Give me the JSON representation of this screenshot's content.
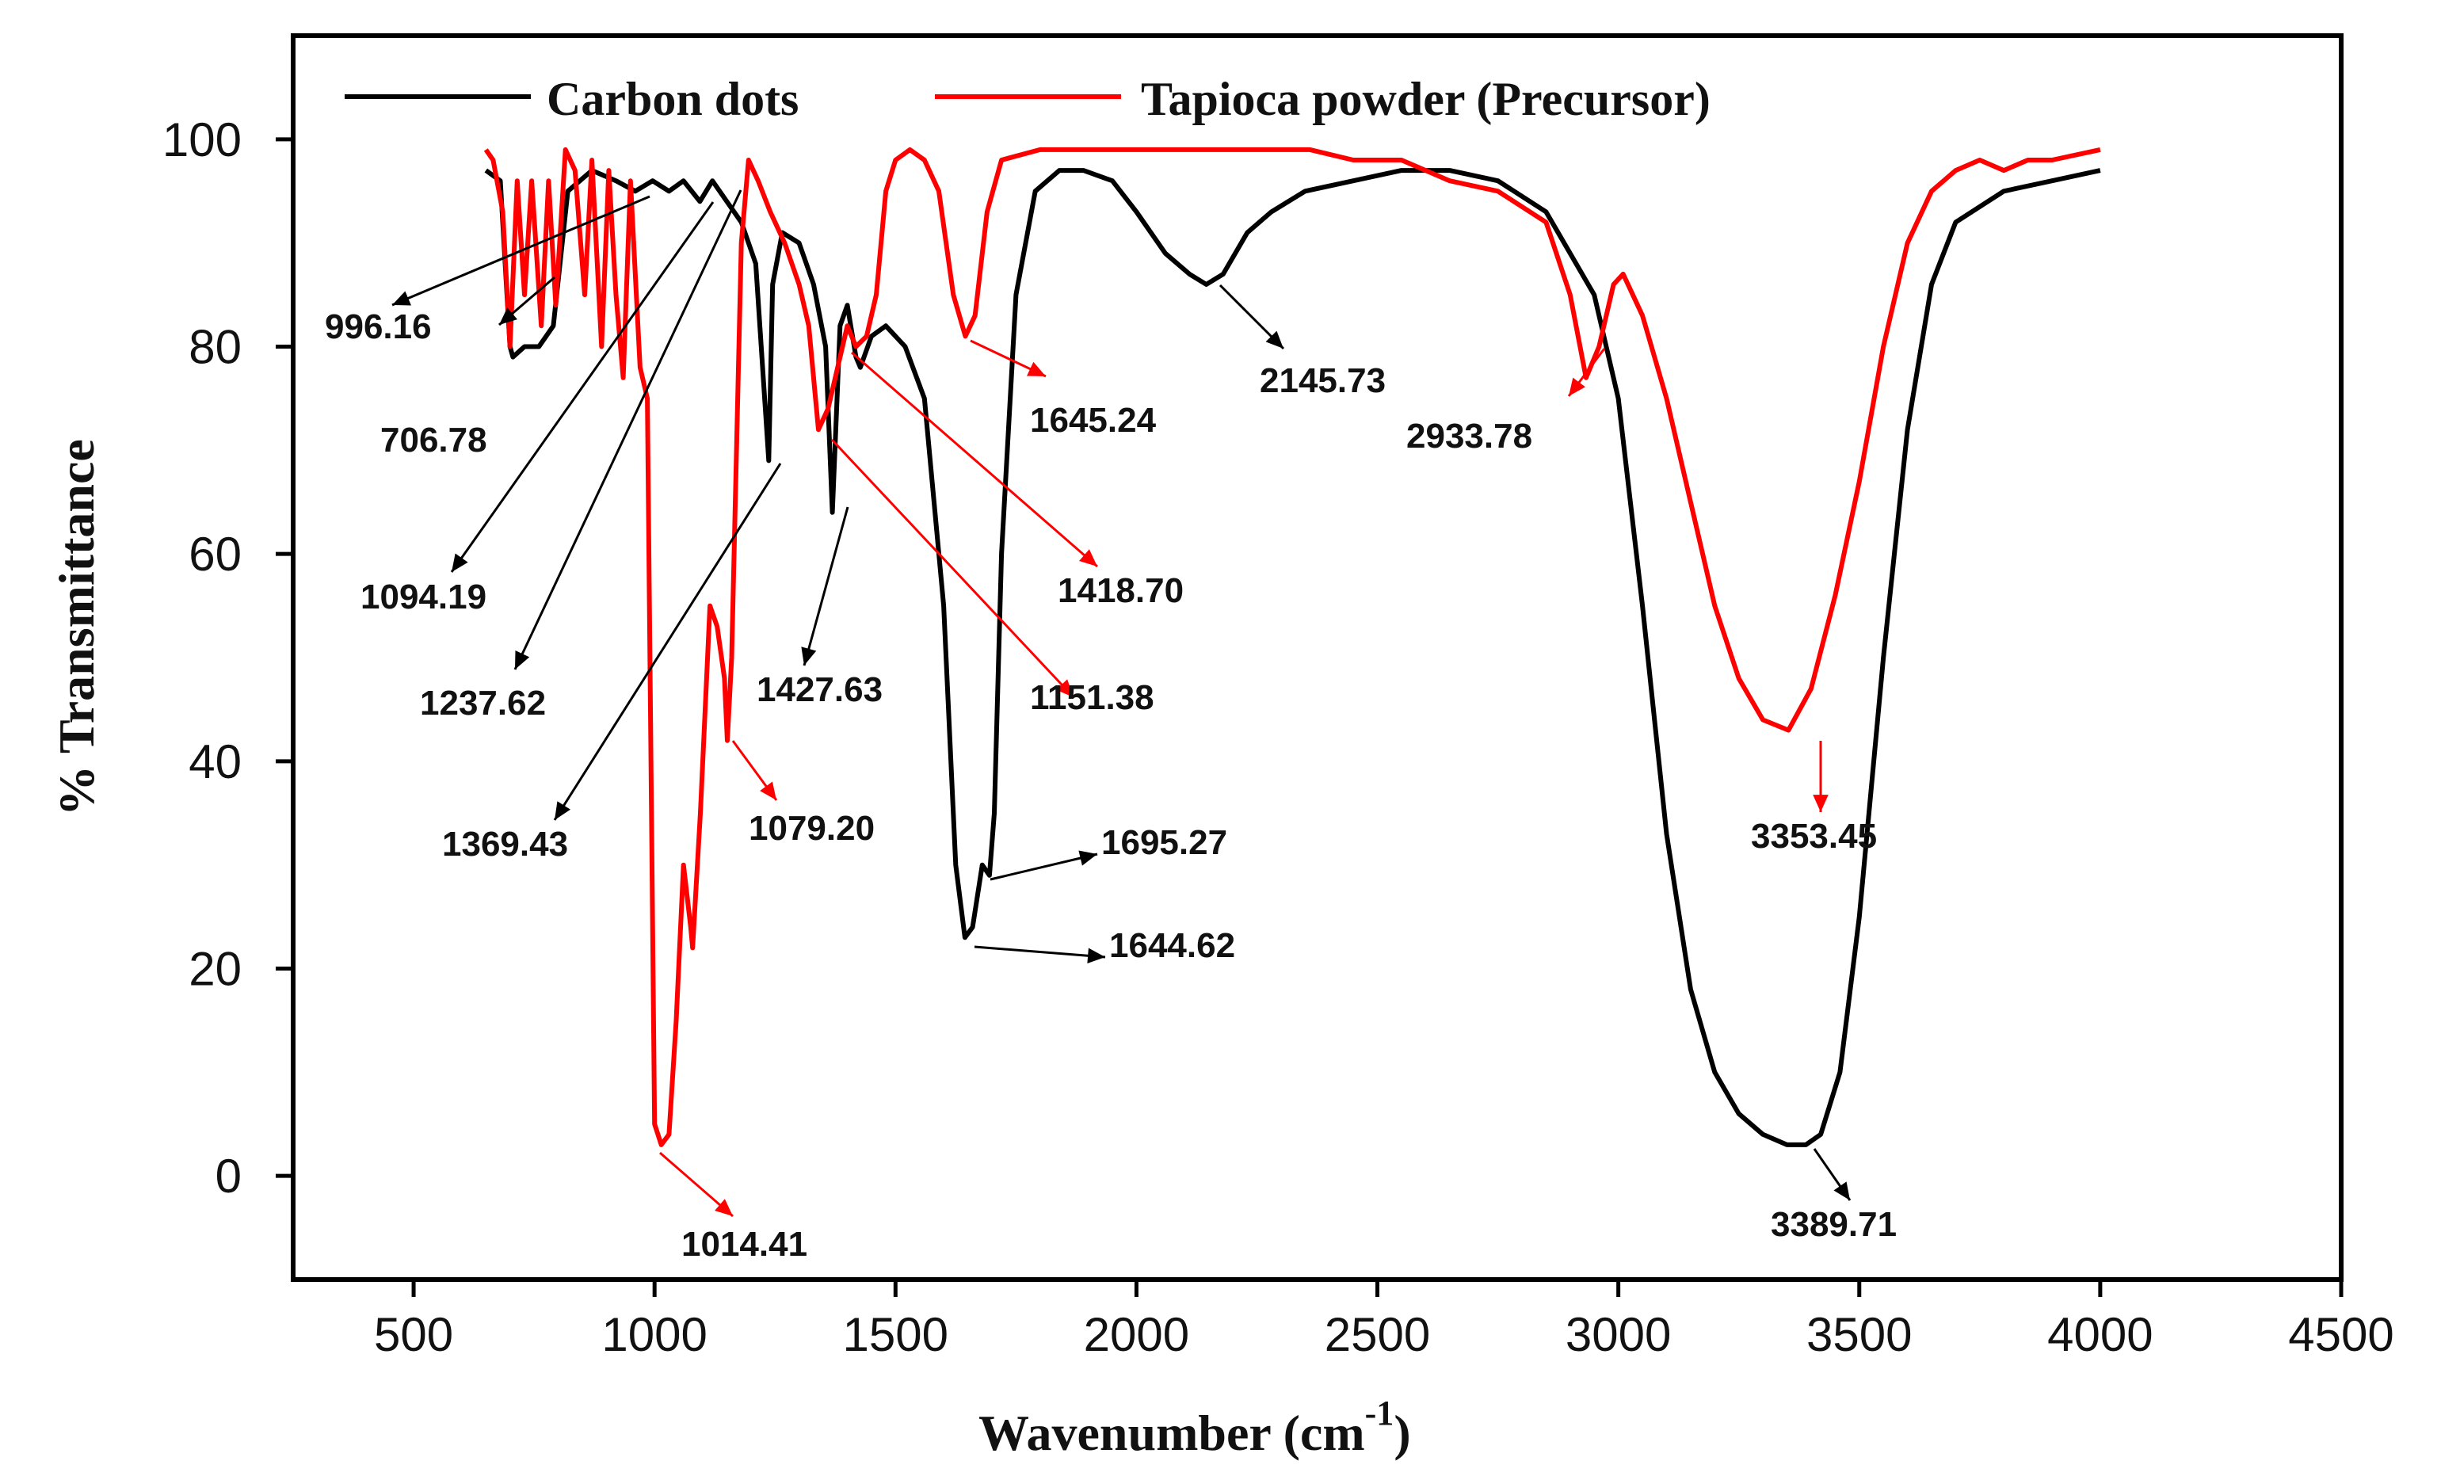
{
  "chart_data": {
    "type": "line",
    "title": "",
    "xlabel": "Wavenumber (cm",
    "xlabel_superscript": "-1",
    "xlabel_close": ")",
    "ylabel": "% Transmittance",
    "xlim": [
      250,
      4500
    ],
    "ylim": [
      -10,
      110
    ],
    "xticks": [
      500,
      1000,
      1500,
      2000,
      2500,
      3000,
      3500,
      4000,
      4500
    ],
    "yticks": [
      0,
      20,
      40,
      60,
      80,
      100
    ],
    "legend_position": "top",
    "series": [
      {
        "name": "Carbon dots",
        "color": "#000000",
        "points": [
          [
            650,
            97
          ],
          [
            680,
            96
          ],
          [
            700,
            80
          ],
          [
            706,
            79
          ],
          [
            730,
            80
          ],
          [
            760,
            80
          ],
          [
            790,
            82
          ],
          [
            820,
            95
          ],
          [
            870,
            97
          ],
          [
            920,
            96
          ],
          [
            960,
            95
          ],
          [
            996,
            96
          ],
          [
            1030,
            95
          ],
          [
            1060,
            96
          ],
          [
            1094,
            94
          ],
          [
            1120,
            96
          ],
          [
            1150,
            94
          ],
          [
            1180,
            92
          ],
          [
            1210,
            88
          ],
          [
            1237,
            69
          ],
          [
            1245,
            86
          ],
          [
            1265,
            91
          ],
          [
            1300,
            90
          ],
          [
            1330,
            86
          ],
          [
            1355,
            80
          ],
          [
            1369,
            64
          ],
          [
            1385,
            82
          ],
          [
            1400,
            84
          ],
          [
            1418,
            79
          ],
          [
            1427,
            78
          ],
          [
            1450,
            81
          ],
          [
            1480,
            82
          ],
          [
            1520,
            80
          ],
          [
            1560,
            75
          ],
          [
            1600,
            55
          ],
          [
            1625,
            30
          ],
          [
            1644,
            23
          ],
          [
            1660,
            24
          ],
          [
            1680,
            30
          ],
          [
            1695,
            29
          ],
          [
            1705,
            35
          ],
          [
            1720,
            60
          ],
          [
            1750,
            85
          ],
          [
            1790,
            95
          ],
          [
            1840,
            97
          ],
          [
            1890,
            97
          ],
          [
            1950,
            96
          ],
          [
            2000,
            93
          ],
          [
            2060,
            89
          ],
          [
            2110,
            87
          ],
          [
            2145,
            86
          ],
          [
            2180,
            87
          ],
          [
            2230,
            91
          ],
          [
            2280,
            93
          ],
          [
            2350,
            95
          ],
          [
            2450,
            96
          ],
          [
            2550,
            97
          ],
          [
            2650,
            97
          ],
          [
            2750,
            96
          ],
          [
            2850,
            93
          ],
          [
            2950,
            85
          ],
          [
            3000,
            75
          ],
          [
            3050,
            55
          ],
          [
            3100,
            33
          ],
          [
            3150,
            18
          ],
          [
            3200,
            10
          ],
          [
            3250,
            6
          ],
          [
            3300,
            4
          ],
          [
            3350,
            3
          ],
          [
            3389,
            3
          ],
          [
            3420,
            4
          ],
          [
            3460,
            10
          ],
          [
            3500,
            25
          ],
          [
            3550,
            50
          ],
          [
            3600,
            72
          ],
          [
            3650,
            86
          ],
          [
            3700,
            92
          ],
          [
            3800,
            95
          ],
          [
            3900,
            96
          ],
          [
            4000,
            97
          ]
        ]
      },
      {
        "name": "Tapioca powder (Precursor)",
        "color": "#ff0000",
        "points": [
          [
            650,
            99
          ],
          [
            665,
            98
          ],
          [
            685,
            93
          ],
          [
            700,
            80
          ],
          [
            715,
            96
          ],
          [
            730,
            85
          ],
          [
            745,
            96
          ],
          [
            765,
            82
          ],
          [
            780,
            96
          ],
          [
            795,
            84
          ],
          [
            815,
            99
          ],
          [
            835,
            97
          ],
          [
            855,
            85
          ],
          [
            870,
            98
          ],
          [
            890,
            80
          ],
          [
            905,
            97
          ],
          [
            920,
            85
          ],
          [
            935,
            77
          ],
          [
            950,
            96
          ],
          [
            970,
            78
          ],
          [
            985,
            75
          ],
          [
            1000,
            5
          ],
          [
            1014,
            3
          ],
          [
            1030,
            4
          ],
          [
            1045,
            15
          ],
          [
            1060,
            30
          ],
          [
            1075,
            24
          ],
          [
            1079,
            22
          ],
          [
            1095,
            35
          ],
          [
            1115,
            55
          ],
          [
            1130,
            53
          ],
          [
            1145,
            48
          ],
          [
            1151,
            42
          ],
          [
            1160,
            50
          ],
          [
            1180,
            90
          ],
          [
            1195,
            98
          ],
          [
            1215,
            96
          ],
          [
            1240,
            93
          ],
          [
            1270,
            90
          ],
          [
            1300,
            86
          ],
          [
            1320,
            82
          ],
          [
            1340,
            72
          ],
          [
            1360,
            74
          ],
          [
            1380,
            78
          ],
          [
            1400,
            82
          ],
          [
            1418,
            80
          ],
          [
            1440,
            81
          ],
          [
            1460,
            85
          ],
          [
            1480,
            95
          ],
          [
            1500,
            98
          ],
          [
            1530,
            99
          ],
          [
            1560,
            98
          ],
          [
            1590,
            95
          ],
          [
            1620,
            85
          ],
          [
            1645,
            81
          ],
          [
            1665,
            83
          ],
          [
            1690,
            93
          ],
          [
            1720,
            98
          ],
          [
            1800,
            99
          ],
          [
            1900,
            99
          ],
          [
            2000,
            99
          ],
          [
            2100,
            99
          ],
          [
            2200,
            99
          ],
          [
            2300,
            99
          ],
          [
            2360,
            99
          ],
          [
            2450,
            98
          ],
          [
            2550,
            98
          ],
          [
            2650,
            96
          ],
          [
            2750,
            95
          ],
          [
            2850,
            92
          ],
          [
            2900,
            85
          ],
          [
            2933,
            77
          ],
          [
            2960,
            80
          ],
          [
            2990,
            86
          ],
          [
            3010,
            87
          ],
          [
            3050,
            83
          ],
          [
            3100,
            75
          ],
          [
            3150,
            65
          ],
          [
            3200,
            55
          ],
          [
            3250,
            48
          ],
          [
            3300,
            44
          ],
          [
            3353,
            43
          ],
          [
            3400,
            47
          ],
          [
            3450,
            56
          ],
          [
            3500,
            67
          ],
          [
            3550,
            80
          ],
          [
            3600,
            90
          ],
          [
            3650,
            95
          ],
          [
            3700,
            97
          ],
          [
            3750,
            98
          ],
          [
            3800,
            97
          ],
          [
            3850,
            98
          ],
          [
            3900,
            98
          ],
          [
            4000,
            99
          ]
        ]
      }
    ],
    "annotations": [
      {
        "label": "996.16",
        "color": "#000000"
      },
      {
        "label": "706.78",
        "color": "#000000"
      },
      {
        "label": "1094.19",
        "color": "#000000"
      },
      {
        "label": "1237.62",
        "color": "#000000"
      },
      {
        "label": "1369.43",
        "color": "#000000"
      },
      {
        "label": "1427.63",
        "color": "#000000"
      },
      {
        "label": "1079.20",
        "color": "#ff0000"
      },
      {
        "label": "1151.38",
        "color": "#ff0000"
      },
      {
        "label": "1418.70",
        "color": "#ff0000"
      },
      {
        "label": "1645.24",
        "color": "#ff0000"
      },
      {
        "label": "2145.73",
        "color": "#000000"
      },
      {
        "label": "2933.78",
        "color": "#ff0000"
      },
      {
        "label": "1695.27",
        "color": "#000000"
      },
      {
        "label": "1644.62",
        "color": "#000000"
      },
      {
        "label": "1014.41",
        "color": "#ff0000"
      },
      {
        "label": "3353.45",
        "color": "#ff0000"
      },
      {
        "label": "3389.71",
        "color": "#000000"
      }
    ]
  }
}
